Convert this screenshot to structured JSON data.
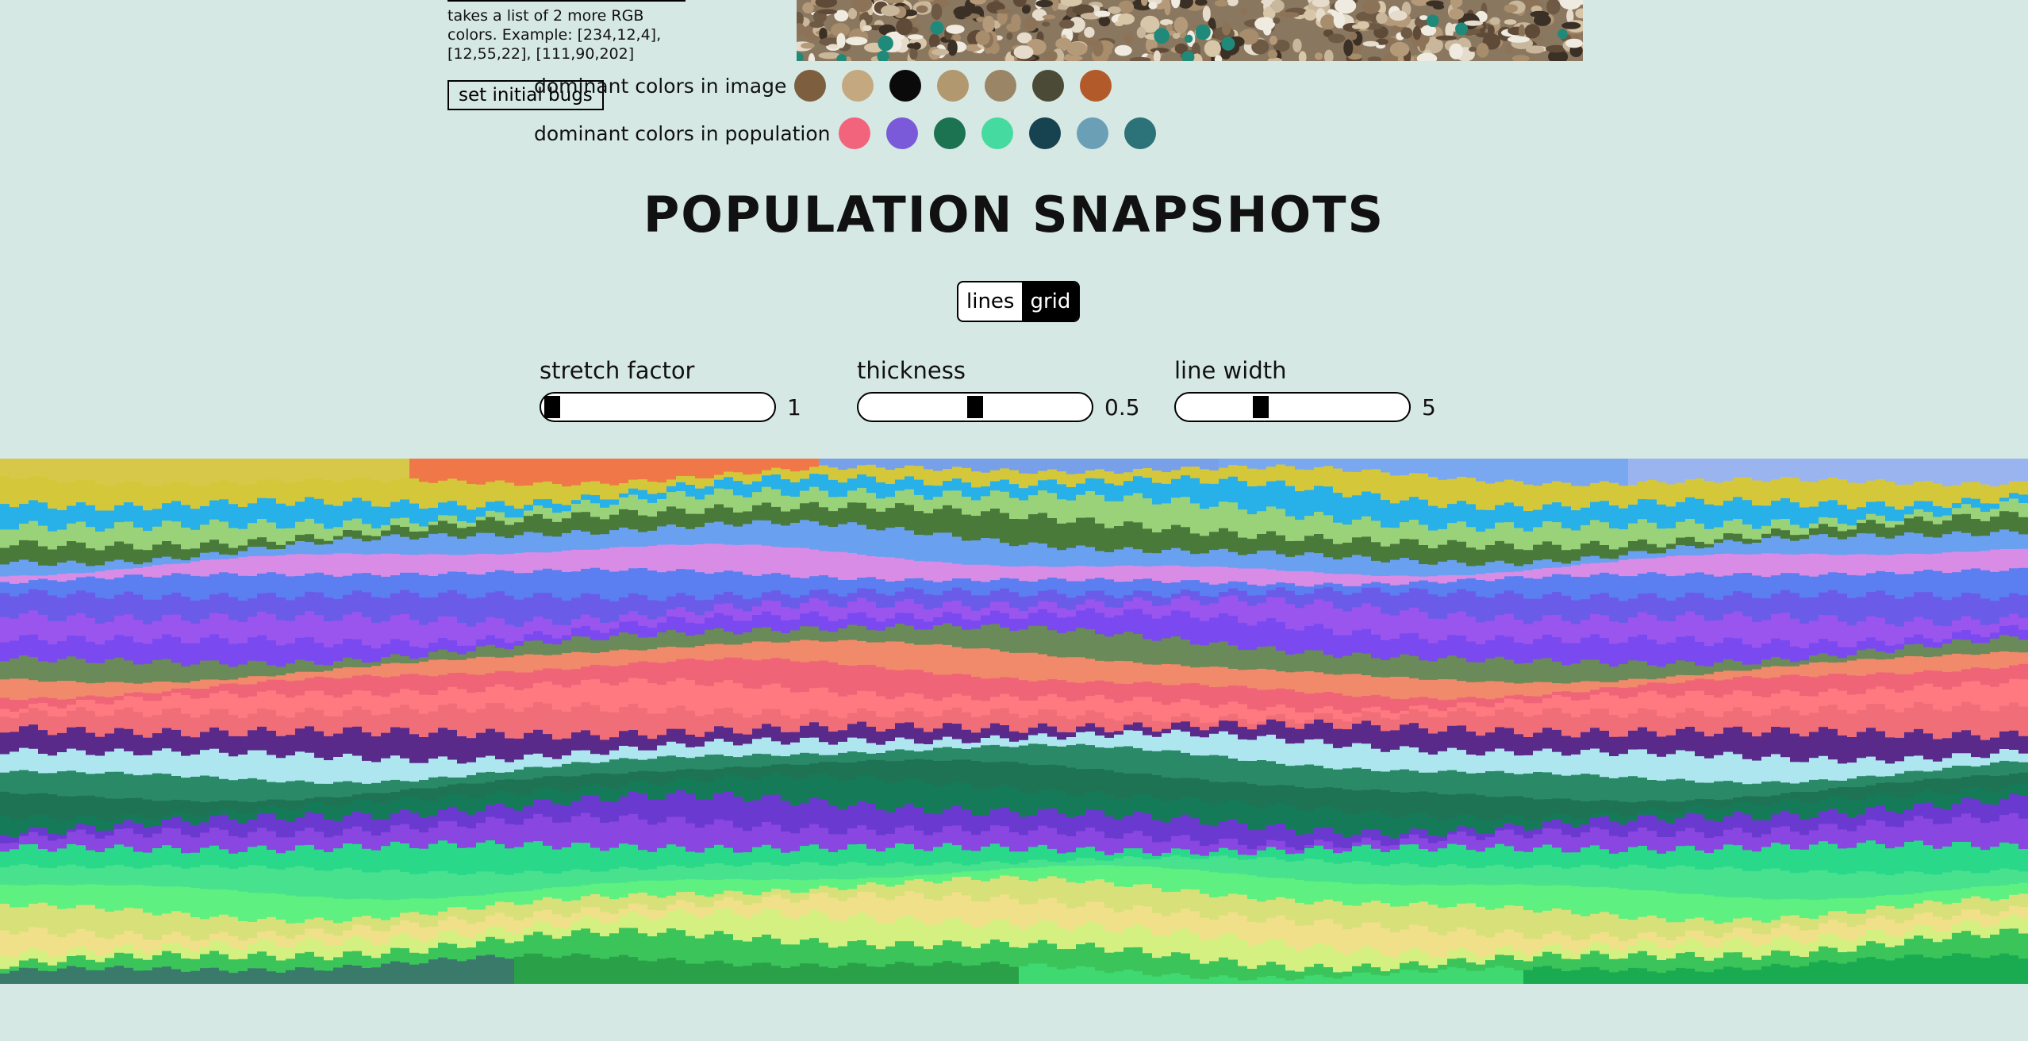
{
  "sidebar": {
    "help_text": "takes a list of 2 more RGB colors. Example: [234,12,4], [12,55,22], [111,90,202]",
    "set_bugs_label": "set initial bugs"
  },
  "image_colors": {
    "label": "dominant colors in image",
    "colors": [
      "#7d5f3f",
      "#c4a880",
      "#0a0a0a",
      "#b1986f",
      "#9a8567",
      "#4b4a36",
      "#b35a2a"
    ]
  },
  "population_colors": {
    "label": "dominant colors in population",
    "colors": [
      "#f2647c",
      "#7a5ad9",
      "#1b7352",
      "#45dba0",
      "#17424f",
      "#6a9fb6",
      "#2b7279"
    ]
  },
  "section_title": "POPULATION SNAPSHOTS",
  "view_toggle": {
    "options": [
      "lines",
      "grid"
    ],
    "active": "grid"
  },
  "sliders": [
    {
      "label": "stretch factor",
      "value": "1",
      "fraction": 0.0
    },
    {
      "label": "thickness",
      "value": "0.5",
      "fraction": 0.5
    },
    {
      "label": "line width",
      "value": "5",
      "fraction": 0.35
    }
  ],
  "snapshot": {
    "bands": [
      "#e07d3f",
      "#d4c83a",
      "#28b0e8",
      "#9ad27a",
      "#4a7a3a",
      "#6aa0f0",
      "#d88ce6",
      "#5b7ef0",
      "#6a5ce8",
      "#9a55ee",
      "#7a4af0",
      "#6a8a5a",
      "#f08a6a",
      "#f06478",
      "#ff7a80",
      "#f06e78",
      "#5a2a8a",
      "#aee6f0",
      "#2a8a68",
      "#1f7355",
      "#157a58",
      "#6a3ad0",
      "#8a46e0",
      "#2ad88a",
      "#48e28e",
      "#5ef080",
      "#d8e07a",
      "#f0e08a",
      "#d4f080",
      "#3ac45a",
      "#2ab040"
    ],
    "top_colors": [
      "#d8c84a",
      "#f07848",
      "#78a0e8",
      "#7aa8f0",
      "#9ab4f0"
    ],
    "bottom_colors": [
      "#3a7a6a",
      "#2aa048",
      "#40d870",
      "#1aaa50"
    ]
  }
}
